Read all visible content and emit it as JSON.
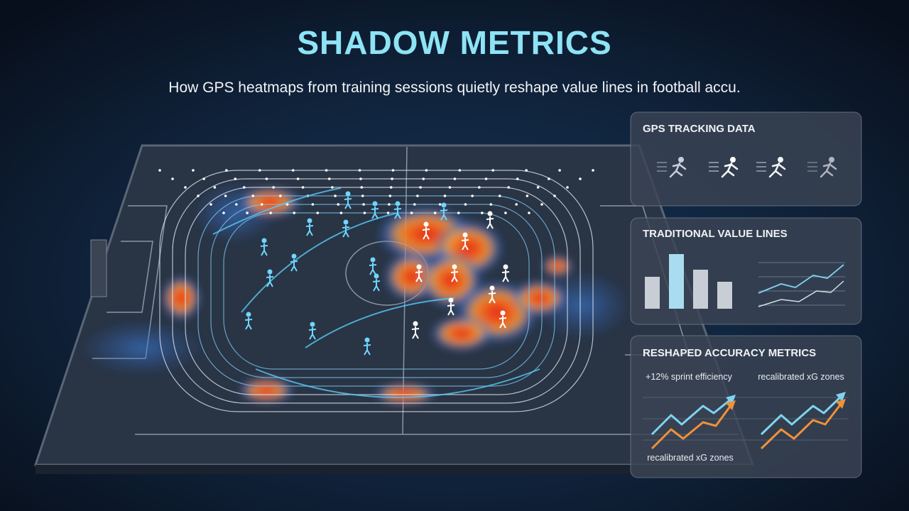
{
  "header": {
    "title": "SHADOW METRICS",
    "subtitle": "How GPS heatmaps from training sessions quietly reshape value lines in football accu."
  },
  "panels": [
    {
      "title": "GPS TRACKING DATA"
    },
    {
      "title": "TRADITIONAL VALUE LINES"
    },
    {
      "title": "RESHAPED ACCURACY METRICS",
      "labels": [
        "+12% sprint efficiency",
        "recalibrated xG zones",
        "recalibrated xG zones"
      ]
    }
  ]
}
